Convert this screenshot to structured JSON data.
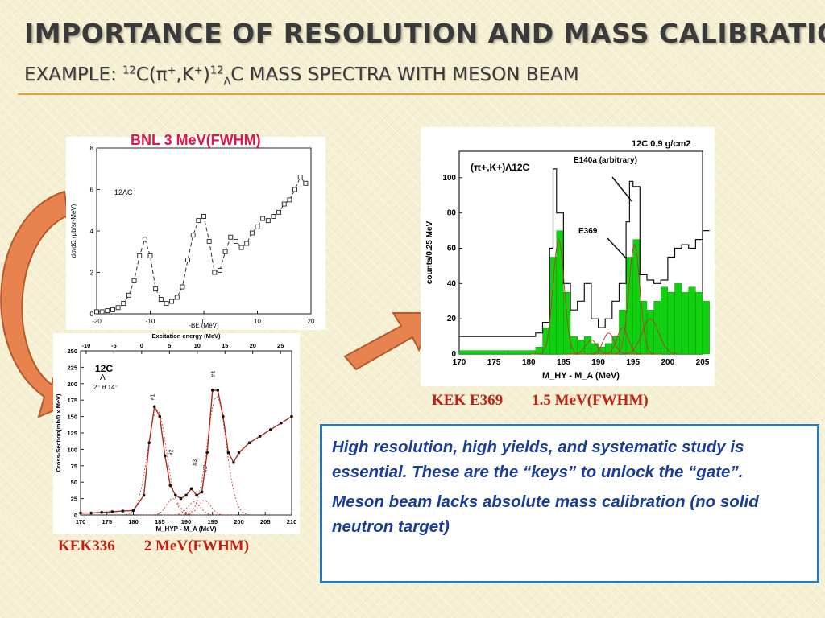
{
  "slide": {
    "title": "IMPORTANCE OF RESOLUTION AND MASS CALIBRATION",
    "subtitle_prefix": "EXAMPLE: ",
    "subtitle_sup1": "12",
    "subtitle_mid1": "C(",
    "subtitle_pi": "π",
    "subtitle_sup2": "+",
    "subtitle_mid2": ",K",
    "subtitle_sup3": "+",
    "subtitle_mid3": ")",
    "subtitle_sup4": "12",
    "subtitle_sub": "Λ",
    "subtitle_end": "C MASS SPECTRA WITH MESON BEAM"
  },
  "captions": {
    "bnl": "BNL 3 MeV(FWHM)",
    "kek336_name": "KEK336",
    "kek336_res": "2 MeV(FWHM)",
    "kek369_name": "KEK E369",
    "kek369_res": "1.5 MeV(FWHM)"
  },
  "textbox": {
    "p1": "High resolution, high yields, and systematic study is essential.  These are the “keys” to unlock the “gate”.",
    "p2": "Meson beam lacks absolute mass calibration (no solid neutron target)"
  },
  "colors": {
    "accent_rule": "#e0a03a",
    "arrow_fill": "#e8834f",
    "arrow_stroke": "#b25a2c",
    "text_blue": "#1b3d9a",
    "caption_red": "#c81d12",
    "green_fill": "#10d010"
  },
  "chart_data": [
    {
      "type": "scatter",
      "name_ref": "BNL",
      "x_axis": {
        "label": "-BE (MeV)",
        "ticks": [
          "-20",
          "-10",
          "0",
          "10",
          "20"
        ],
        "range": [
          -20,
          20
        ]
      },
      "y_axis": {
        "label": "dσ/dΩ (μb/sr-MeV)",
        "ticks": [
          "0",
          "2",
          "4",
          "6",
          "8"
        ],
        "range": [
          0,
          8
        ]
      },
      "label": "12ΛC",
      "x": [
        -20,
        -19,
        -18,
        -17,
        -16,
        -15,
        -14,
        -13,
        -12,
        -11,
        -10,
        -9,
        -8,
        -7,
        -6,
        -5,
        -4,
        -3,
        -2,
        -1,
        0,
        1,
        2,
        3,
        4,
        5,
        6,
        7,
        8,
        9,
        10,
        11,
        12,
        13,
        14,
        15,
        16,
        17,
        18,
        19
      ],
      "y": [
        0.1,
        0.1,
        0.15,
        0.2,
        0.3,
        0.5,
        0.9,
        1.6,
        2.8,
        3.6,
        2.8,
        1.2,
        0.7,
        0.5,
        0.6,
        0.8,
        1.3,
        2.6,
        3.8,
        4.5,
        4.7,
        3.5,
        2.0,
        2.1,
        3.0,
        3.7,
        3.5,
        3.2,
        3.4,
        3.9,
        4.2,
        4.6,
        4.5,
        4.7,
        4.9,
        5.3,
        5.5,
        6.0,
        6.6,
        6.3
      ]
    },
    {
      "type": "line",
      "name_ref": "KEK336",
      "x_axis": {
        "label": "M_HYP - M_A  (MeV)",
        "ticks": [
          "170",
          "175",
          "180",
          "185",
          "190",
          "195",
          "200",
          "205",
          "210"
        ],
        "range": [
          170,
          210
        ]
      },
      "x2_axis": {
        "label": "Excitation energy (MeV)",
        "ticks": [
          "-10",
          "-5",
          "0",
          "5",
          "10",
          "15",
          "20",
          "25"
        ]
      },
      "y_axis": {
        "label": "Cross-Section(mb/0.x MeV)",
        "ticks": [
          "0",
          "25",
          "50",
          "75",
          "100",
          "125",
          "150",
          "175",
          "200",
          "225",
          "250"
        ],
        "range": [
          0,
          250
        ]
      },
      "labels": [
        "12C",
        "Λ",
        "2⁻ θ 14⁻",
        "#1",
        "#2",
        "#3",
        "#3'",
        "#4"
      ],
      "x": [
        170,
        172,
        174,
        176,
        178,
        180,
        182,
        183,
        184,
        185,
        186,
        187,
        188,
        189,
        190,
        191,
        192,
        193,
        194,
        195,
        196,
        197,
        198,
        199,
        200,
        202,
        204,
        206,
        208,
        210
      ],
      "y": [
        3,
        3,
        4,
        5,
        6,
        7,
        30,
        110,
        165,
        150,
        90,
        45,
        30,
        25,
        30,
        40,
        30,
        35,
        95,
        190,
        190,
        150,
        95,
        80,
        95,
        110,
        120,
        130,
        140,
        150
      ]
    },
    {
      "type": "bar",
      "name_ref": "KEK E369",
      "x_axis": {
        "label": "M_HY - M_A  (MeV)",
        "ticks": [
          "170",
          "175",
          "180",
          "185",
          "190",
          "195",
          "200",
          "205"
        ],
        "range": [
          170,
          205
        ]
      },
      "y_axis": {
        "label": "counts/0.25 MeV",
        "ticks": [
          "0",
          "20",
          "40",
          "60",
          "80",
          "100"
        ],
        "range": [
          0,
          115
        ]
      },
      "labels": [
        "12C 0.9 g/cm2",
        "(π+,K+)Λ12C",
        "E140a (arbitrary)",
        "E369"
      ],
      "series": [
        {
          "name": "E140a",
          "x": [
            170,
            177,
            181,
            182,
            183,
            183.5,
            184,
            185,
            186,
            187,
            188,
            189,
            190,
            191,
            192,
            193,
            194,
            194.5,
            195,
            196,
            197,
            198,
            199,
            200,
            201,
            202,
            203,
            204,
            205
          ],
          "y": [
            10,
            10,
            12,
            18,
            60,
            105,
            80,
            40,
            25,
            30,
            40,
            20,
            15,
            20,
            30,
            40,
            75,
            98,
            95,
            45,
            42,
            40,
            42,
            55,
            60,
            62,
            60,
            65,
            70
          ]
        },
        {
          "name": "E369",
          "x": [
            170,
            177,
            181,
            182,
            183,
            184,
            185,
            186,
            187,
            188,
            189,
            190,
            191,
            192,
            193,
            194,
            195,
            196,
            197,
            198,
            199,
            200,
            201,
            202,
            203,
            204,
            205
          ],
          "y": [
            2,
            2,
            4,
            15,
            55,
            70,
            35,
            10,
            8,
            10,
            6,
            4,
            6,
            10,
            25,
            55,
            65,
            30,
            25,
            30,
            38,
            35,
            40,
            35,
            38,
            35,
            30
          ]
        }
      ]
    }
  ]
}
